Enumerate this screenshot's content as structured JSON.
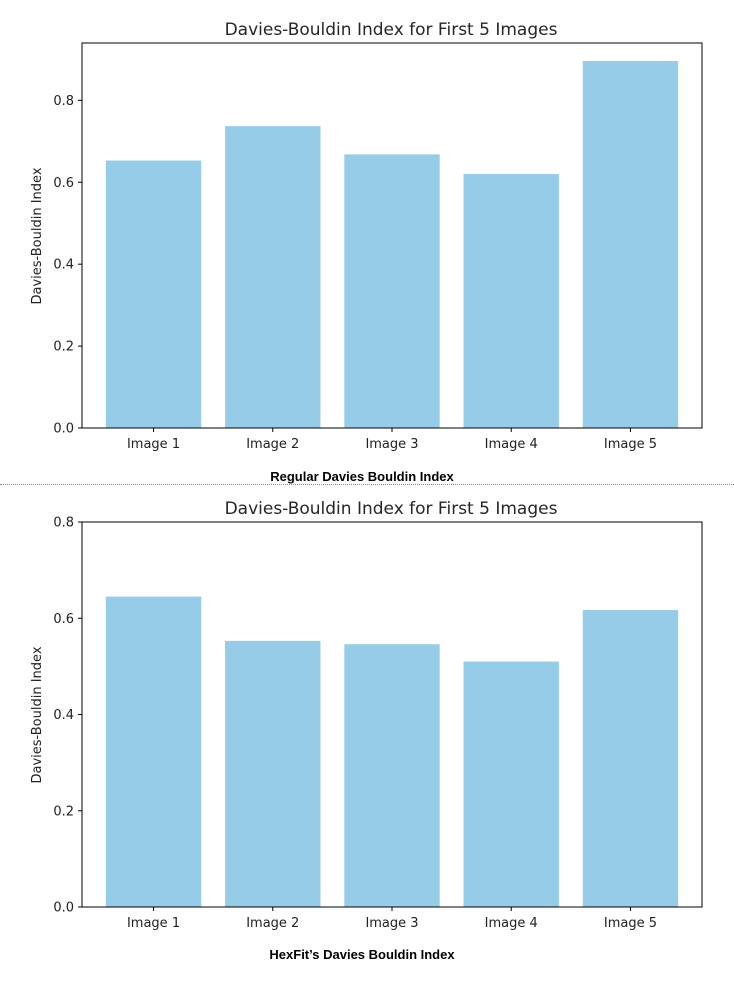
{
  "chart_data": [
    {
      "type": "bar",
      "title": "Davies-Bouldin Index for First 5 Images",
      "xlabel": "",
      "ylabel": "Davies-Bouldin Index",
      "categories": [
        "Image 1",
        "Image 2",
        "Image 3",
        "Image 4",
        "Image 5"
      ],
      "values": [
        0.653,
        0.737,
        0.668,
        0.62,
        0.896
      ],
      "ylim": [
        0,
        0.94
      ],
      "yticks": [
        0.0,
        0.2,
        0.4,
        0.6,
        0.8
      ],
      "ytick_labels": [
        "0.0",
        "0.2",
        "0.4",
        "0.6",
        "0.8"
      ],
      "grid": false,
      "bar_color": "#97cce8",
      "caption": "Regular Davies Bouldin Index"
    },
    {
      "type": "bar",
      "title": "Davies-Bouldin Index for First 5 Images",
      "xlabel": "",
      "ylabel": "Davies-Bouldin Index",
      "categories": [
        "Image 1",
        "Image 2",
        "Image 3",
        "Image 4",
        "Image 5"
      ],
      "values": [
        0.645,
        0.553,
        0.546,
        0.51,
        0.617
      ],
      "ylim": [
        0,
        0.8
      ],
      "yticks": [
        0.0,
        0.2,
        0.4,
        0.6,
        0.8
      ],
      "ytick_labels": [
        "0.0",
        "0.2",
        "0.4",
        "0.6",
        "0.8"
      ],
      "grid": false,
      "bar_color": "#97cce8",
      "caption": "HexFit’s Davies Bouldin Index"
    }
  ]
}
